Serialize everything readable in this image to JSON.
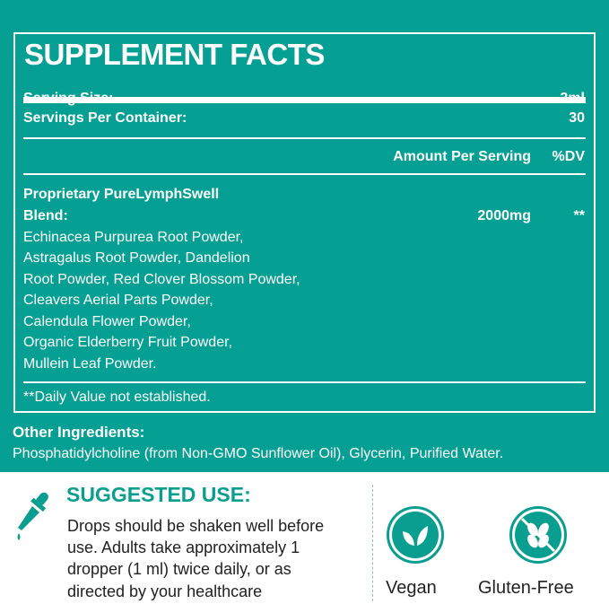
{
  "facts": {
    "title": "SUPPLEMENT FACTS",
    "serving_size_label": "Serving Size:",
    "serving_size_value": "2ml",
    "servings_label": "Servings Per Container:",
    "servings_value": "30",
    "amount_header": "Amount Per Serving",
    "dv_header": "%DV",
    "blend_line1": "Proprietary PureLymphSwell",
    "blend_line2": "Blend:",
    "blend_amount": "2000mg",
    "blend_dv": "**",
    "ingredients": [
      "Echinacea Purpurea Root Powder,",
      "Astragalus Root Powder, Dandelion",
      "Root Powder, Red Clover Blossom  Powder,",
      "Cleavers Aerial Parts Powder,",
      "Calendula Flower Powder,",
      "Organic Elderberry Fruit Powder,",
      "Mullein Leaf Powder."
    ],
    "footnote": "**Daily Value not established."
  },
  "other": {
    "title": "Other Ingredients:",
    "text": "Phosphatidylcholine (from Non-GMO Sunflower Oil), Glycerin, Purified Water."
  },
  "suggested": {
    "title": "SUGGESTED USE:",
    "lines": [
      "Drops should be shaken well before",
      "use. Adults take approximately 1",
      "dropper (1 ml) twice daily, or as",
      "directed by your healthcare"
    ],
    "icon": "dropper-icon"
  },
  "badges": [
    {
      "label": "Vegan",
      "icon": "leaf-icon"
    },
    {
      "label": "Gluten-Free",
      "icon": "no-wheat-icon"
    }
  ],
  "colors": {
    "teal": "#05a093"
  }
}
